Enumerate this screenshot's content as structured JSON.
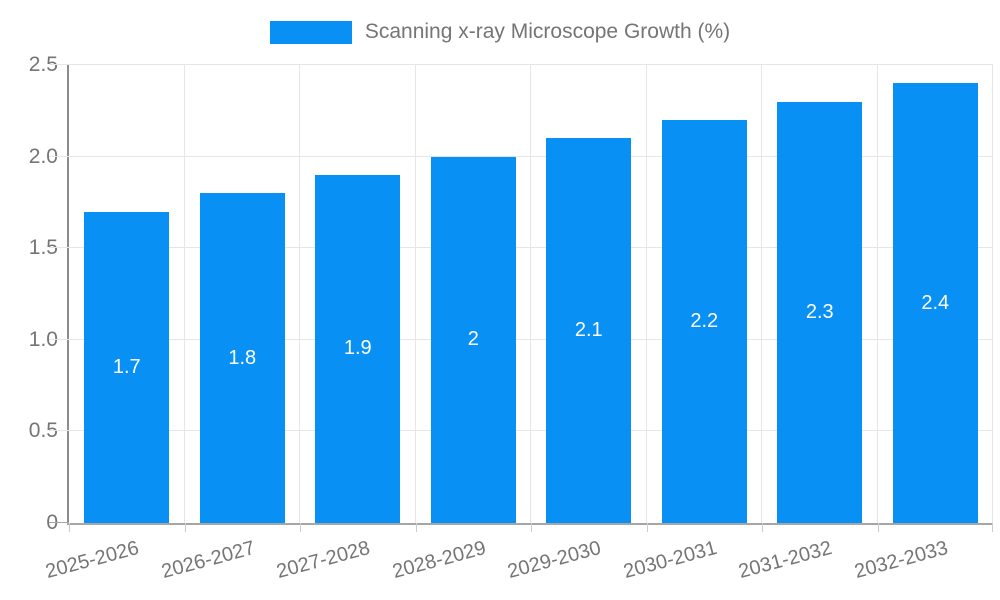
{
  "chart_data": {
    "type": "bar",
    "title": "Scanning x-ray Microscope Growth (%)",
    "legend": {
      "label": "Scanning x-ray Microscope Growth (%)",
      "position": "top-center"
    },
    "categories": [
      "2025-2026",
      "2026-2027",
      "2027-2028",
      "2028-2029",
      "2029-2030",
      "2030-2031",
      "2031-2032",
      "2032-2033"
    ],
    "values": [
      1.7,
      1.8,
      1.9,
      2,
      2.1,
      2.2,
      2.3,
      2.4
    ],
    "value_labels": [
      "1.7",
      "1.8",
      "1.9",
      "2",
      "2.1",
      "2.2",
      "2.3",
      "2.4"
    ],
    "xlabel": "",
    "ylabel": "",
    "ylim": [
      0,
      2.5
    ],
    "yticks": [
      {
        "value": 0,
        "label": "0"
      },
      {
        "value": 0.5,
        "label": "0.5"
      },
      {
        "value": 1.0,
        "label": "1.0"
      },
      {
        "value": 1.5,
        "label": "1.5"
      },
      {
        "value": 2.0,
        "label": "2.0"
      },
      {
        "value": 2.5,
        "label": "2.5"
      }
    ],
    "grid": true,
    "colors": {
      "bar": "#0890f5",
      "grid": "#e6e6e6",
      "axis_y": "#8c8c8c",
      "axis_x": "#a6a6a6",
      "tick": "#cccccc",
      "text": "#757575",
      "value_label": "#ffffff",
      "background": "#ffffff"
    }
  }
}
